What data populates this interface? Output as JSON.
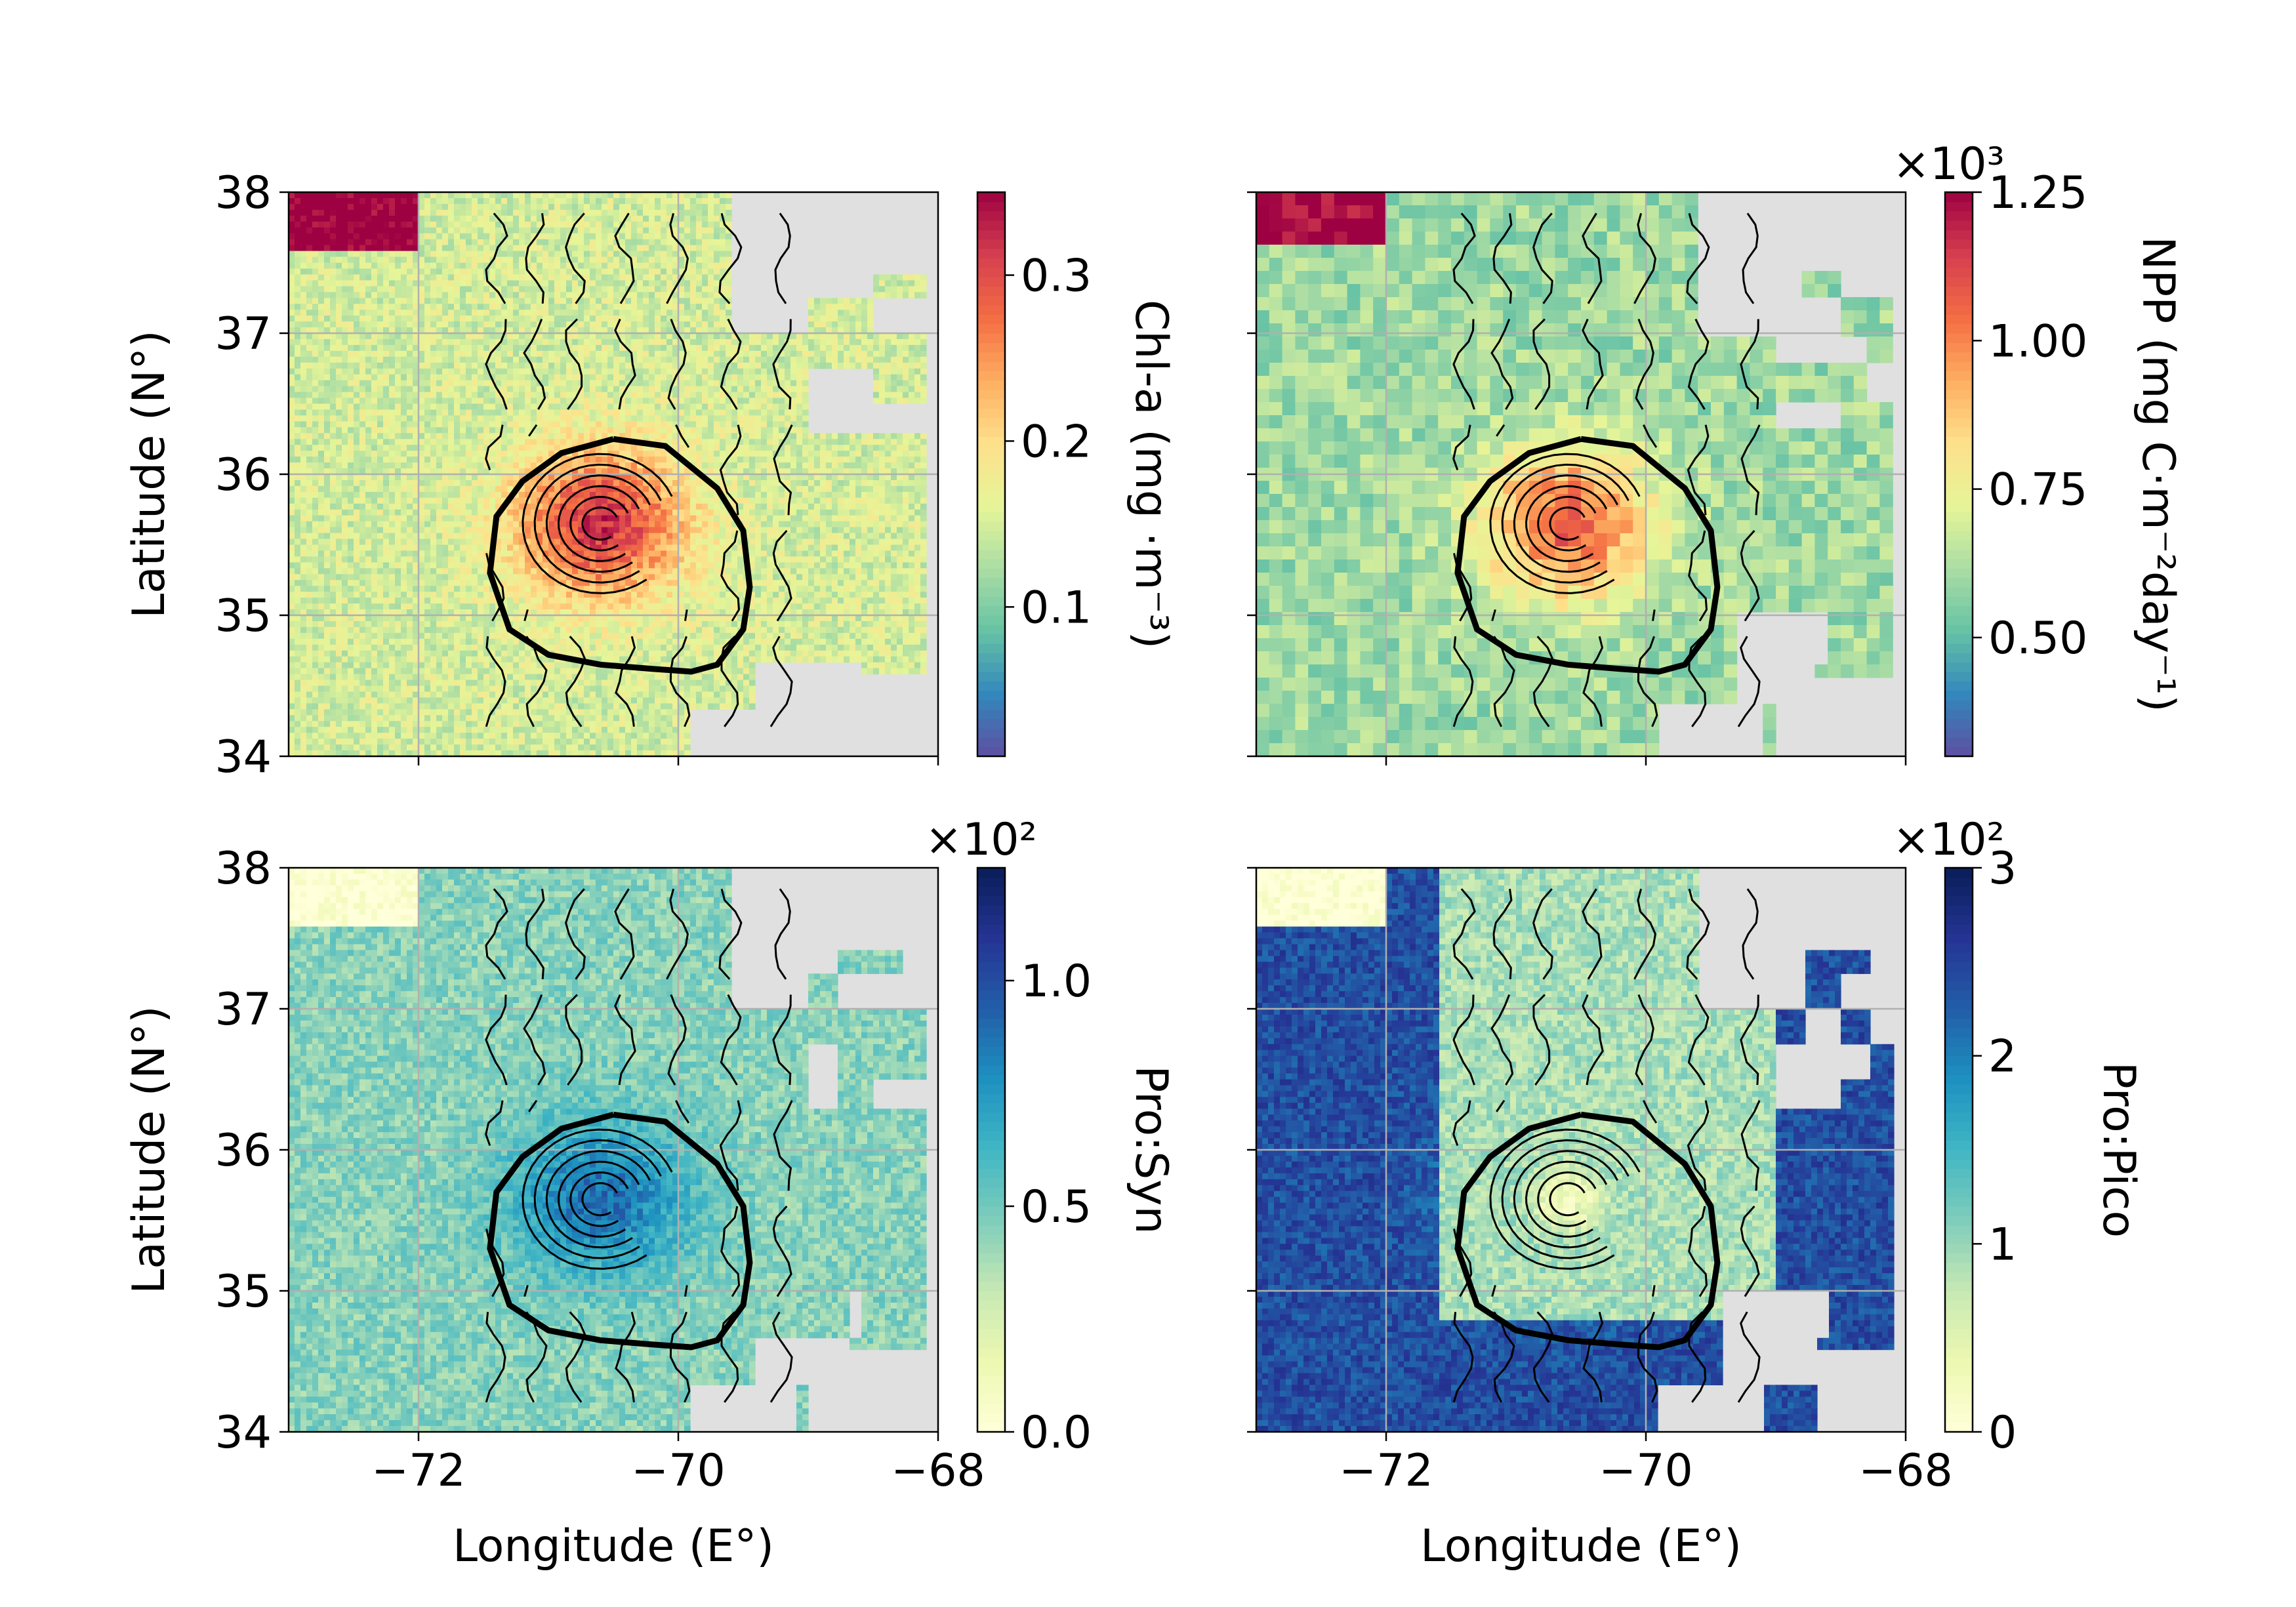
{
  "figure": {
    "ylabel": "Latitude (N°)",
    "xlabel": "Longitude (E°)",
    "x_ticks": [
      -72,
      -70,
      -68
    ],
    "x_tick_labels": [
      "−72",
      "−70",
      "−68"
    ],
    "y_ticks": [
      34,
      35,
      36,
      37,
      38
    ],
    "y_tick_labels": [
      "34",
      "35",
      "36",
      "37",
      "38"
    ],
    "xlim": [
      -73,
      -68
    ],
    "ylim": [
      34,
      38
    ]
  },
  "chart_data": [
    {
      "type": "heatmap",
      "panel": "top-left",
      "variable": "Chl-a",
      "xlim": [
        -73,
        -68
      ],
      "ylim": [
        34,
        38
      ],
      "colormap": "Spectral_r",
      "colorbar": {
        "label": "Chl-a (mg ·m⁻³)",
        "range": [
          0.01,
          0.35
        ],
        "ticks": [
          0.1,
          0.2,
          0.3
        ],
        "tick_labels": [
          "0.1",
          "0.2",
          "0.3"
        ],
        "multiplier": ""
      },
      "field": {
        "background": 0.15,
        "eddy_peak": 0.32,
        "north_peak": 0.36
      },
      "grid": true
    },
    {
      "type": "heatmap",
      "panel": "top-right",
      "variable": "NPP",
      "xlim": [
        -73,
        -68
      ],
      "ylim": [
        34,
        38
      ],
      "colormap": "Spectral_r",
      "colorbar": {
        "label": "NPP (mg C·m⁻²day⁻¹)",
        "range": [
          0.3,
          1.25
        ],
        "ticks": [
          0.5,
          0.75,
          1.0,
          1.25
        ],
        "tick_labels": [
          "0.50",
          "0.75",
          "1.00",
          "1.25"
        ],
        "multiplier": "×10³"
      },
      "field": {
        "background": 0.6,
        "eddy_peak": 1.08,
        "north_peak": 1.25
      },
      "grid": true
    },
    {
      "type": "heatmap",
      "panel": "bottom-left",
      "variable": "Pro:Syn",
      "xlim": [
        -73,
        -68
      ],
      "ylim": [
        34,
        38
      ],
      "colormap": "YlGnBu",
      "colorbar": {
        "label": "Pro:Syn",
        "range": [
          0,
          1.25
        ],
        "ticks": [
          0.0,
          0.5,
          1.0
        ],
        "tick_labels": [
          "0.0",
          "0.5",
          "1.0"
        ],
        "multiplier": "×10²"
      },
      "field": {
        "background": 0.45,
        "eddy_peak": 0.9,
        "north_peak": 0.0
      },
      "grid": true
    },
    {
      "type": "heatmap",
      "panel": "bottom-right",
      "variable": "Pro:Pico",
      "xlim": [
        -73,
        -68
      ],
      "ylim": [
        34,
        38
      ],
      "colormap": "YlGnBu",
      "colorbar": {
        "label": "Pro:Pico",
        "range": [
          0,
          3
        ],
        "ticks": [
          0,
          1,
          2,
          3
        ],
        "tick_labels": [
          "0",
          "1",
          "2",
          "3"
        ],
        "multiplier": "×10²"
      },
      "field": {
        "background": 2.4,
        "eddy_peak": 0.3,
        "north_peak": 0.0
      },
      "grid": true
    }
  ],
  "eddy_contour": {
    "lon": [
      -70.5,
      -70.1,
      -69.7,
      -69.5,
      -69.45,
      -69.5,
      -69.7,
      -69.9,
      -70.2,
      -70.6,
      -71.0,
      -71.3,
      -71.45,
      -71.4,
      -71.2,
      -70.9,
      -70.5
    ],
    "lat": [
      36.25,
      36.2,
      35.9,
      35.6,
      35.2,
      34.9,
      34.65,
      34.6,
      34.62,
      34.65,
      34.72,
      34.9,
      35.3,
      35.7,
      35.95,
      36.15,
      36.25
    ]
  },
  "eddy_center": {
    "lon": -70.6,
    "lat": 35.65
  },
  "colors": {
    "land_nan": "#e0e0e0",
    "grid": "#b0b0b0",
    "streamline": "#000000"
  }
}
